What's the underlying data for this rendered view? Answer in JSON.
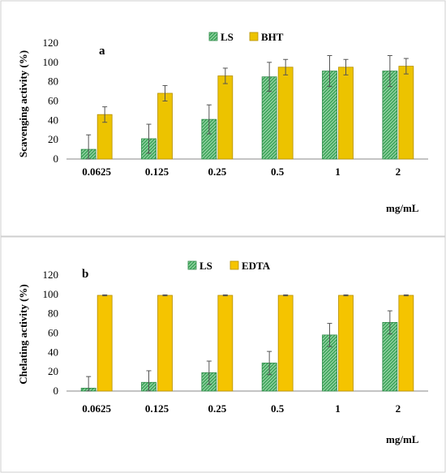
{
  "colors": {
    "ls": "#3fa65c",
    "ls_hatch": "#9fd6ac",
    "bht": "#ecc300",
    "edta": "#f5c400",
    "axis": "#888888",
    "border": "#cfcfcf",
    "bar_outline": "#7a5a00"
  },
  "chart_data": [
    {
      "type": "bar",
      "panel_label": "a",
      "ylabel": "Scavenging activity (%)",
      "xlabel": "mg/mL",
      "ylim": [
        0,
        120
      ],
      "yticks": [
        0,
        20,
        40,
        60,
        80,
        100,
        120
      ],
      "categories": [
        "0.0625",
        "0.125",
        "0.25",
        "0.5",
        "1",
        "2"
      ],
      "legend_position": "top-center",
      "grid": false,
      "series": [
        {
          "name": "LS",
          "color_key": "ls",
          "hatched": true,
          "values": [
            10,
            21,
            41,
            85,
            91,
            91
          ],
          "errors": [
            15,
            15,
            15,
            15,
            16,
            16
          ]
        },
        {
          "name": "BHT",
          "color_key": "bht",
          "hatched": false,
          "values": [
            46,
            68,
            86,
            95,
            95,
            96
          ],
          "errors": [
            8,
            8,
            8,
            8,
            8,
            8
          ]
        }
      ]
    },
    {
      "type": "bar",
      "panel_label": "b",
      "ylabel": "Chelating activity (%)",
      "xlabel": "mg/mL",
      "ylim": [
        0,
        120
      ],
      "yticks": [
        0,
        20,
        40,
        60,
        80,
        100,
        120
      ],
      "categories": [
        "0.0625",
        "0.125",
        "0.25",
        "0.5",
        "1",
        "2"
      ],
      "legend_position": "top-center",
      "grid": false,
      "series": [
        {
          "name": "LS",
          "color_key": "ls",
          "hatched": true,
          "values": [
            3,
            9,
            19,
            29,
            58,
            71
          ],
          "errors": [
            12,
            12,
            12,
            12,
            12,
            12
          ]
        },
        {
          "name": "EDTA",
          "color_key": "edta",
          "hatched": false,
          "values": [
            99,
            99,
            99,
            99,
            99,
            99
          ],
          "errors": [
            0.5,
            0.5,
            0.5,
            0.5,
            0.5,
            0.5
          ]
        }
      ]
    }
  ]
}
